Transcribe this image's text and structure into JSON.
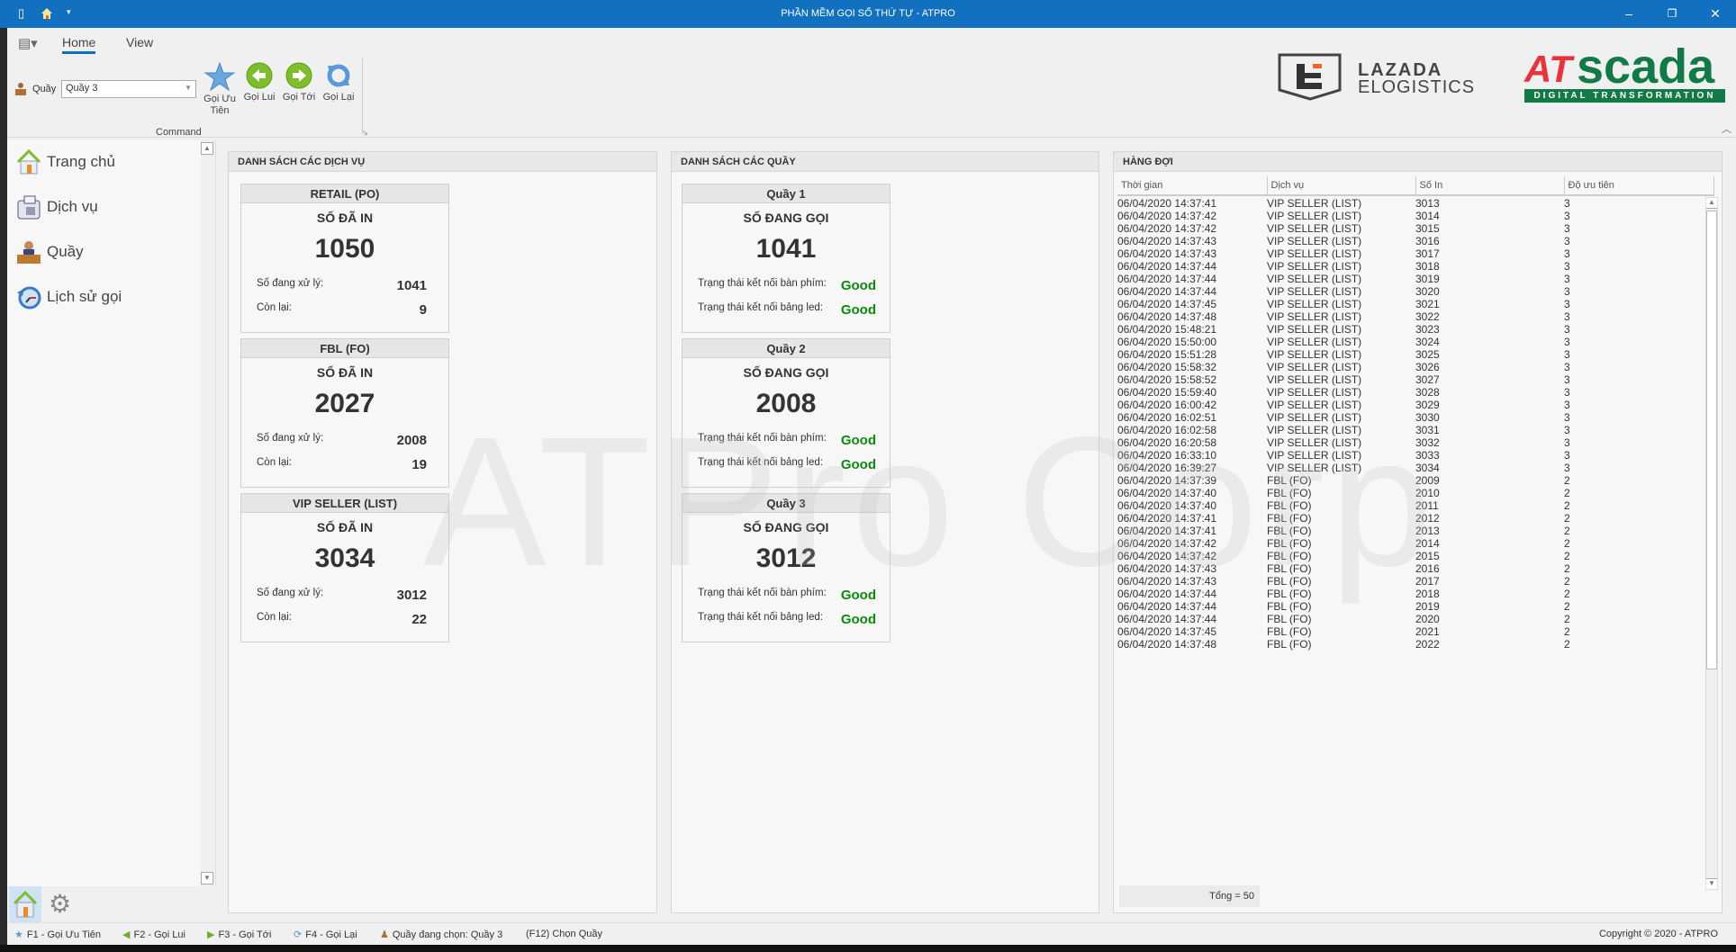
{
  "window": {
    "title": "PHẦN MỀM GỌI SỐ THỨ TỰ - ATPRO",
    "accent": "#1170c0"
  },
  "ribbon": {
    "tabs": [
      {
        "label": "Home",
        "active": true
      },
      {
        "label": "View",
        "active": false
      }
    ],
    "counter_label": "Quầy",
    "counter_value": "Quầy 3",
    "commands": [
      {
        "label": "Gọi Ưu Tiên",
        "icon": "star-icon"
      },
      {
        "label": "Gọi Lui",
        "icon": "arrow-left-icon"
      },
      {
        "label": "Gọi Tới",
        "icon": "arrow-right-icon"
      },
      {
        "label": "Gọi Lại",
        "icon": "refresh-icon"
      }
    ],
    "group_label": "Command"
  },
  "logos": {
    "lazada_line1": "LAZADA",
    "lazada_line2": "ELOGISTICS",
    "atscada_at": "AT",
    "atscada_scada": "scada",
    "atscada_tag": "DIGITAL TRANSFORMATION"
  },
  "sidebar": {
    "items": [
      {
        "label": "Trang chủ",
        "icon": "home-icon"
      },
      {
        "label": "Dịch vụ",
        "icon": "phone-icon"
      },
      {
        "label": "Quầy",
        "icon": "counter-icon"
      },
      {
        "label": "Lịch sử gọi",
        "icon": "history-icon"
      }
    ]
  },
  "services": {
    "title": "DANH SÁCH CÁC DỊCH VỤ",
    "printed_label": "SỐ ĐÃ IN",
    "processing_label": "Số đang xử lý:",
    "remaining_label": "Còn lại:",
    "items": [
      {
        "name": "RETAIL (PO)",
        "printed": "1050",
        "processing": "1041",
        "remaining": "9"
      },
      {
        "name": "FBL (FO)",
        "printed": "2027",
        "processing": "2008",
        "remaining": "19"
      },
      {
        "name": "VIP SELLER (LIST)",
        "printed": "3034",
        "processing": "3012",
        "remaining": "22"
      }
    ]
  },
  "counters": {
    "title": "DANH SÁCH CÁC QUẦY",
    "calling_label": "SỐ ĐANG GỌI",
    "keyboard_label": "Trạng thái kết nối bàn phím:",
    "led_label": "Trạng thái kết nối bảng led:",
    "items": [
      {
        "name": "Quầy 1",
        "calling": "1041",
        "keyboard": "Good",
        "led": "Good"
      },
      {
        "name": "Quầy 2",
        "calling": "2008",
        "keyboard": "Good",
        "led": "Good"
      },
      {
        "name": "Quầy 3",
        "calling": "3012",
        "keyboard": "Good",
        "led": "Good"
      }
    ],
    "good_color": "#0b8a0b"
  },
  "queue": {
    "title": "HÀNG ĐỢI",
    "columns": [
      "Thời gian",
      "Dịch vụ",
      "Số In",
      "Độ ưu tiên"
    ],
    "selected_index": 2,
    "rows": [
      [
        "06/04/2020 14:37:41",
        "VIP SELLER (LIST)",
        "3013",
        "3"
      ],
      [
        "06/04/2020 14:37:42",
        "VIP SELLER (LIST)",
        "3014",
        "3"
      ],
      [
        "06/04/2020 14:37:42",
        "VIP SELLER (LIST)",
        "3015",
        "3"
      ],
      [
        "06/04/2020 14:37:43",
        "VIP SELLER (LIST)",
        "3016",
        "3"
      ],
      [
        "06/04/2020 14:37:43",
        "VIP SELLER (LIST)",
        "3017",
        "3"
      ],
      [
        "06/04/2020 14:37:44",
        "VIP SELLER (LIST)",
        "3018",
        "3"
      ],
      [
        "06/04/2020 14:37:44",
        "VIP SELLER (LIST)",
        "3019",
        "3"
      ],
      [
        "06/04/2020 14:37:44",
        "VIP SELLER (LIST)",
        "3020",
        "3"
      ],
      [
        "06/04/2020 14:37:45",
        "VIP SELLER (LIST)",
        "3021",
        "3"
      ],
      [
        "06/04/2020 14:37:48",
        "VIP SELLER (LIST)",
        "3022",
        "3"
      ],
      [
        "06/04/2020 15:48:21",
        "VIP SELLER (LIST)",
        "3023",
        "3"
      ],
      [
        "06/04/2020 15:50:00",
        "VIP SELLER (LIST)",
        "3024",
        "3"
      ],
      [
        "06/04/2020 15:51:28",
        "VIP SELLER (LIST)",
        "3025",
        "3"
      ],
      [
        "06/04/2020 15:58:32",
        "VIP SELLER (LIST)",
        "3026",
        "3"
      ],
      [
        "06/04/2020 15:58:52",
        "VIP SELLER (LIST)",
        "3027",
        "3"
      ],
      [
        "06/04/2020 15:59:40",
        "VIP SELLER (LIST)",
        "3028",
        "3"
      ],
      [
        "06/04/2020 16:00:42",
        "VIP SELLER (LIST)",
        "3029",
        "3"
      ],
      [
        "06/04/2020 16:02:51",
        "VIP SELLER (LIST)",
        "3030",
        "3"
      ],
      [
        "06/04/2020 16:02:58",
        "VIP SELLER (LIST)",
        "3031",
        "3"
      ],
      [
        "06/04/2020 16:20:58",
        "VIP SELLER (LIST)",
        "3032",
        "3"
      ],
      [
        "06/04/2020 16:33:10",
        "VIP SELLER (LIST)",
        "3033",
        "3"
      ],
      [
        "06/04/2020 16:39:27",
        "VIP SELLER (LIST)",
        "3034",
        "3"
      ],
      [
        "06/04/2020 14:37:39",
        "FBL (FO)",
        "2009",
        "2"
      ],
      [
        "06/04/2020 14:37:40",
        "FBL (FO)",
        "2010",
        "2"
      ],
      [
        "06/04/2020 14:37:40",
        "FBL (FO)",
        "2011",
        "2"
      ],
      [
        "06/04/2020 14:37:41",
        "FBL (FO)",
        "2012",
        "2"
      ],
      [
        "06/04/2020 14:37:41",
        "FBL (FO)",
        "2013",
        "2"
      ],
      [
        "06/04/2020 14:37:42",
        "FBL (FO)",
        "2014",
        "2"
      ],
      [
        "06/04/2020 14:37:42",
        "FBL (FO)",
        "2015",
        "2"
      ],
      [
        "06/04/2020 14:37:43",
        "FBL (FO)",
        "2016",
        "2"
      ],
      [
        "06/04/2020 14:37:43",
        "FBL (FO)",
        "2017",
        "2"
      ],
      [
        "06/04/2020 14:37:44",
        "FBL (FO)",
        "2018",
        "2"
      ],
      [
        "06/04/2020 14:37:44",
        "FBL (FO)",
        "2019",
        "2"
      ],
      [
        "06/04/2020 14:37:44",
        "FBL (FO)",
        "2020",
        "2"
      ],
      [
        "06/04/2020 14:37:45",
        "FBL (FO)",
        "2021",
        "2"
      ],
      [
        "06/04/2020 14:37:48",
        "FBL (FO)",
        "2022",
        "2"
      ]
    ],
    "total": "Tổng = 50"
  },
  "statusbar": {
    "items": [
      "F1 - Gọi Ưu Tiên",
      "F2 - Gọi Lui",
      "F3 - Gọi Tới",
      "F4 - Gọi Lại",
      "Quầy đang chọn: Quầy 3",
      "(F12) Chọn Quầy"
    ],
    "copyright": "Copyright ©  2020 - ATPRO"
  },
  "watermark": "ATPro Corp"
}
